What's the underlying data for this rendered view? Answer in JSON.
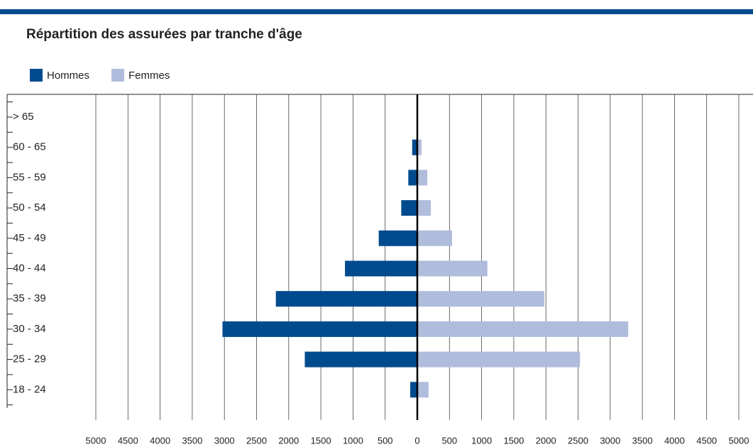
{
  "chart_data": {
    "type": "pyramid",
    "title": "Répartition des assurées par tranche d'âge",
    "categories": [
      "> 65",
      "60 - 65",
      "55 - 59",
      "50 - 54",
      "45 - 49",
      "40 - 44",
      "35 - 39",
      "30 - 34",
      "25 - 29",
      "18 - 24"
    ],
    "series": [
      {
        "name": "Hommes",
        "color": "#004b8d",
        "values": [
          0,
          -80,
          -140,
          -250,
          -600,
          -1125,
          -2200,
          -3030,
          -1750,
          -110
        ]
      },
      {
        "name": "Femmes",
        "color": "#b0bcdc",
        "values": [
          0,
          65,
          155,
          210,
          540,
          1090,
          1975,
          3280,
          2530,
          175
        ]
      }
    ],
    "xlim": [
      -5000,
      5000
    ],
    "xticks": [
      {
        "value": -5000,
        "label": "5000"
      },
      {
        "value": -4500,
        "label": "4500"
      },
      {
        "value": -4000,
        "label": "4000"
      },
      {
        "value": -3500,
        "label": "3500"
      },
      {
        "value": -3000,
        "label": "3000"
      },
      {
        "value": -2500,
        "label": "2500"
      },
      {
        "value": -2000,
        "label": "2000"
      },
      {
        "value": -1500,
        "label": "1500"
      },
      {
        "value": -1000,
        "label": "1000"
      },
      {
        "value": -500,
        "label": "500"
      },
      0,
      500,
      1000,
      1500,
      2000,
      2500,
      3000,
      3500,
      4000,
      4500,
      5000
    ],
    "grid": true
  }
}
